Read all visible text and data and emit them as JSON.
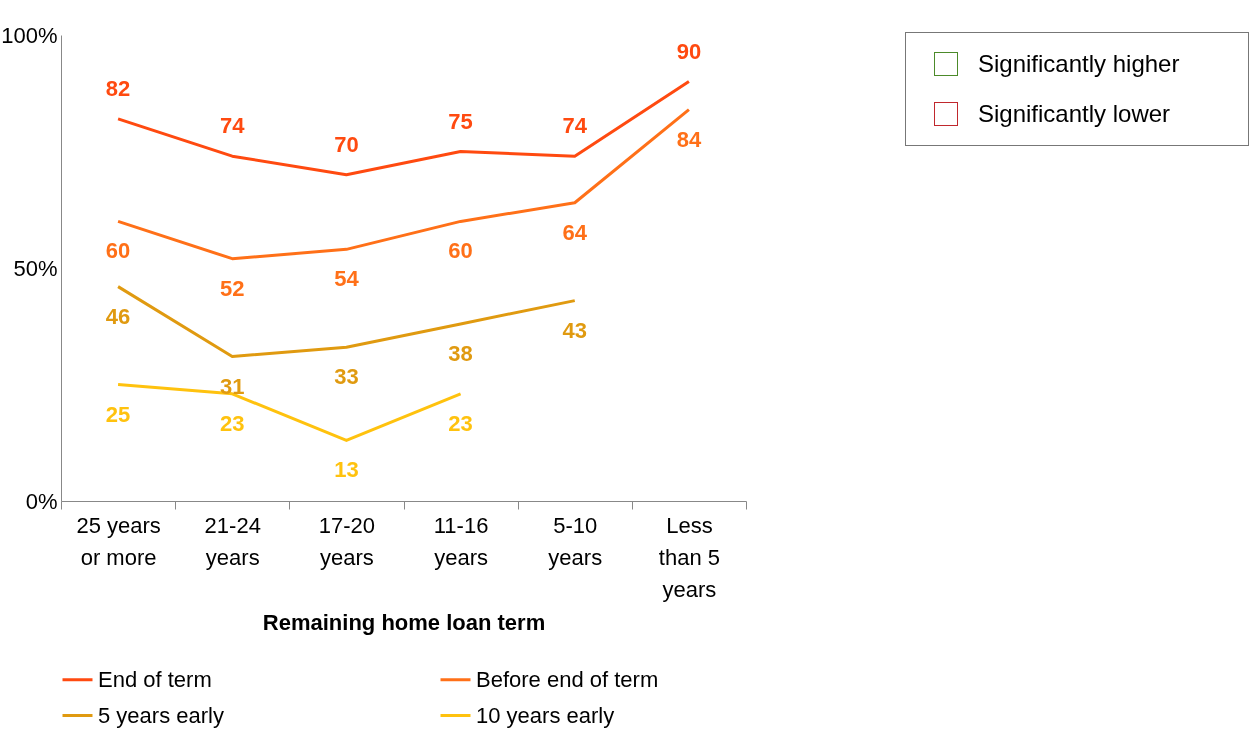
{
  "chart_data": {
    "type": "line",
    "xlabel": "Remaining home loan term",
    "categories": [
      "25 years or more",
      "21-24 years",
      "17-20 years",
      "11-16 years",
      "5-10 years",
      "Less than 5 years"
    ],
    "series": [
      {
        "name": "End of term",
        "color": "#ff4a10",
        "values": [
          82,
          74,
          70,
          75,
          74,
          90
        ]
      },
      {
        "name": "Before end of term",
        "color": "#ff7018",
        "values": [
          60,
          52,
          54,
          60,
          64,
          84
        ]
      },
      {
        "name": "5 years early",
        "color": "#e09a10",
        "values": [
          46,
          31,
          33,
          38,
          43,
          null
        ]
      },
      {
        "name": "10 years early",
        "color": "#ffc20e",
        "values": [
          25,
          23,
          13,
          23,
          null,
          null
        ]
      }
    ],
    "ylim": [
      0,
      100
    ],
    "yticks": [
      {
        "value": 0,
        "label": "0%"
      },
      {
        "value": 50,
        "label": "50%"
      },
      {
        "value": 100,
        "label": "100%"
      }
    ],
    "grid": false,
    "legend": "bottom",
    "data_labels": true,
    "marker": "none",
    "annotations": [
      "Significantly higher",
      "Significantly lower"
    ]
  }
}
